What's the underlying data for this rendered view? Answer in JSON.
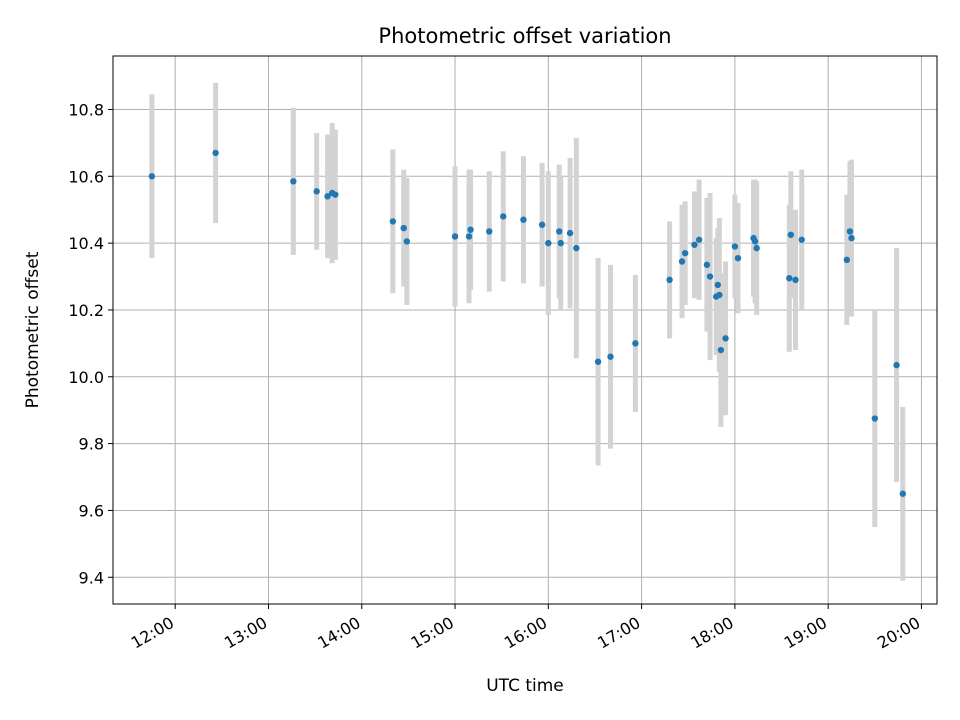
{
  "chart_data": {
    "type": "scatter",
    "title": "Photometric offset variation",
    "xlabel": "UTC time",
    "ylabel": "Photometric offset",
    "x_format": "HH:MM",
    "x_date": "",
    "xlim": [
      "11:20",
      "20:10"
    ],
    "ylim": [
      9.32,
      10.96
    ],
    "grid": true,
    "xticks": [
      "12:00",
      "13:00",
      "14:00",
      "15:00",
      "16:00",
      "17:00",
      "18:00",
      "19:00",
      "20:00"
    ],
    "yticks": [
      "9.4",
      "9.6",
      "9.8",
      "10.0",
      "10.2",
      "10.4",
      "10.6",
      "10.8"
    ],
    "marker_color": "#1f77b4",
    "errorbar_color": "#d3d3d3",
    "series": [
      {
        "x": [
          "11:45",
          "12:26",
          "13:16",
          "13:31",
          "13:38",
          "13:41",
          "13:43",
          "14:20",
          "14:27",
          "14:29",
          "15:00",
          "15:09",
          "15:10",
          "15:22",
          "15:31",
          "15:44",
          "15:56",
          "16:00",
          "16:07",
          "16:08",
          "16:14",
          "16:18",
          "16:32",
          "16:40",
          "16:56",
          "17:18",
          "17:26",
          "17:28",
          "17:34",
          "17:37",
          "17:42",
          "17:44",
          "17:48",
          "17:49",
          "17:50",
          "17:51",
          "17:54",
          "18:00",
          "18:02",
          "18:12",
          "18:13",
          "18:14",
          "18:35",
          "18:36",
          "18:39",
          "18:43",
          "19:12",
          "19:14",
          "19:15",
          "19:30",
          "19:44",
          "19:48"
        ],
        "y": [
          10.6,
          10.67,
          10.585,
          10.555,
          10.54,
          10.55,
          10.545,
          10.465,
          10.445,
          10.405,
          10.42,
          10.42,
          10.44,
          10.435,
          10.48,
          10.47,
          10.455,
          10.4,
          10.435,
          10.4,
          10.43,
          10.385,
          10.045,
          10.06,
          10.1,
          10.29,
          10.345,
          10.37,
          10.395,
          10.41,
          10.335,
          10.3,
          10.24,
          10.275,
          10.245,
          10.08,
          10.115,
          10.39,
          10.355,
          10.415,
          10.405,
          10.385,
          10.295,
          10.425,
          10.29,
          10.41,
          10.35,
          10.435,
          10.415,
          9.875,
          10.035,
          9.65
        ],
        "yerr": [
          0.245,
          0.21,
          0.22,
          0.175,
          0.185,
          0.21,
          0.195,
          0.215,
          0.175,
          0.19,
          0.21,
          0.2,
          0.18,
          0.18,
          0.195,
          0.19,
          0.185,
          0.215,
          0.2,
          0.2,
          0.225,
          0.33,
          0.31,
          0.275,
          0.205,
          0.175,
          0.17,
          0.155,
          0.16,
          0.18,
          0.2,
          0.25,
          0.175,
          0.17,
          0.23,
          0.23,
          0.23,
          0.155,
          0.165,
          0.175,
          0.185,
          0.2,
          0.22,
          0.19,
          0.21,
          0.21,
          0.195,
          0.21,
          0.235,
          0.325,
          0.35,
          0.26
        ]
      }
    ]
  }
}
